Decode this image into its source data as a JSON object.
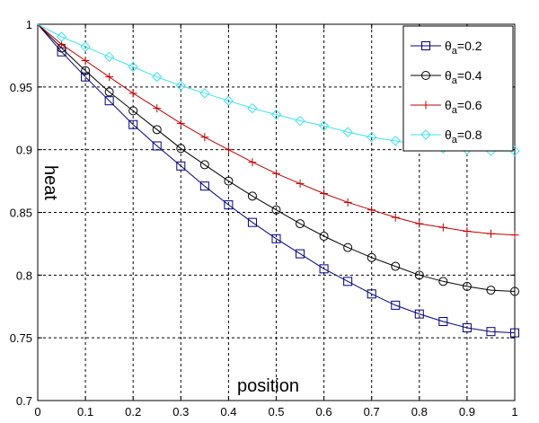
{
  "chart_data": {
    "type": "line",
    "xlabel": "position",
    "ylabel": "heat",
    "xlim": [
      0,
      1
    ],
    "ylim": [
      0.7,
      1
    ],
    "xticks": [
      "0",
      "0.1",
      "0.2",
      "0.3",
      "0.4",
      "0.5",
      "0.6",
      "0.7",
      "0.8",
      "0.9",
      "1"
    ],
    "yticks": [
      "0.7",
      "0.75",
      "0.8",
      "0.85",
      "0.9",
      "0.95",
      "1"
    ],
    "grid": true,
    "legend_position": "top-right",
    "x": [
      0,
      0.05,
      0.1,
      0.15,
      0.2,
      0.25,
      0.3,
      0.35,
      0.4,
      0.45,
      0.5,
      0.55,
      0.6,
      0.65,
      0.7,
      0.75,
      0.8,
      0.85,
      0.9,
      0.95,
      1
    ],
    "series": [
      {
        "name": "θa=0.2",
        "legend_symbol": "θ",
        "legend_sub": "a",
        "legend_value": "=0.2",
        "color": "#00007f",
        "marker": "square",
        "values": [
          1.0,
          0.978,
          0.958,
          0.939,
          0.92,
          0.903,
          0.887,
          0.871,
          0.856,
          0.842,
          0.829,
          0.817,
          0.805,
          0.795,
          0.785,
          0.776,
          0.769,
          0.763,
          0.758,
          0.755,
          0.754
        ]
      },
      {
        "name": "θa=0.4",
        "legend_symbol": "θ",
        "legend_sub": "a",
        "legend_value": "=0.4",
        "color": "#000000",
        "marker": "circle",
        "values": [
          1.0,
          0.981,
          0.963,
          0.946,
          0.931,
          0.916,
          0.901,
          0.888,
          0.875,
          0.863,
          0.852,
          0.841,
          0.831,
          0.822,
          0.814,
          0.807,
          0.8,
          0.795,
          0.791,
          0.788,
          0.787
        ]
      },
      {
        "name": "θa=0.6",
        "legend_symbol": "θ",
        "legend_sub": "a",
        "legend_value": "=0.6",
        "color": "#bf0000",
        "marker": "plus",
        "values": [
          1.0,
          0.984,
          0.971,
          0.958,
          0.945,
          0.933,
          0.921,
          0.91,
          0.9,
          0.89,
          0.881,
          0.873,
          0.865,
          0.858,
          0.852,
          0.846,
          0.841,
          0.838,
          0.835,
          0.833,
          0.832
        ]
      },
      {
        "name": "θa=0.8",
        "legend_symbol": "θ",
        "legend_sub": "a",
        "legend_value": "=0.8",
        "color": "#40e0f0",
        "marker": "diamond",
        "values": [
          1.0,
          0.99,
          0.982,
          0.974,
          0.966,
          0.958,
          0.951,
          0.945,
          0.939,
          0.933,
          0.928,
          0.923,
          0.919,
          0.914,
          0.91,
          0.907,
          0.904,
          0.901,
          0.9,
          0.899,
          0.899
        ]
      }
    ]
  }
}
